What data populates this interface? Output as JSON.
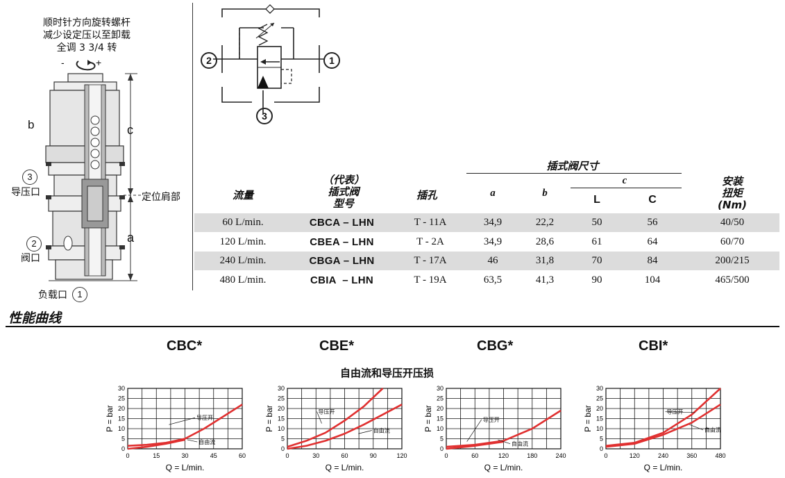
{
  "left_diagram": {
    "instruction": [
      "顺时针方向旋转螺杆",
      "减少设定压以至卸载",
      "全调 3 3/4 转"
    ],
    "minus": "-",
    "plus": "+",
    "label_b": "b",
    "label_c": "c",
    "label_a": "a",
    "port3_num": "3",
    "port3_text": "导压口",
    "port2_num": "2",
    "port2_text": "阀口",
    "port1_text": "负载口",
    "port1_num": "1",
    "shoulder": "定位肩部"
  },
  "schematic": {
    "port1": "1",
    "port2": "2",
    "port3": "3"
  },
  "table": {
    "head_flow": "流量",
    "head_model": [
      "（代表）",
      "插式阀",
      "型号"
    ],
    "head_cavity": "插孔",
    "head_dims": "插式阀尺寸",
    "head_a": "a",
    "head_b": "b",
    "head_c": "c",
    "head_L": "L",
    "head_C": "C",
    "head_torque": [
      "安装",
      "扭矩",
      "(Nm)"
    ],
    "rows": [
      {
        "flow": "60 L/min.",
        "model": "CBCA – LHN",
        "cavity": "T - 11A",
        "a": "34,9",
        "b": "22,2",
        "L": "50",
        "C": "56",
        "torque": "40/50"
      },
      {
        "flow": "120 L/min.",
        "model": "CBEA – LHN",
        "cavity": "T - 2A",
        "a": "34,9",
        "b": "28,6",
        "L": "61",
        "C": "64",
        "torque": "60/70"
      },
      {
        "flow": "240 L/min.",
        "model": "CBGA – LHN",
        "cavity": "T - 17A",
        "a": "46",
        "b": "31,8",
        "L": "70",
        "C": "84",
        "torque": "200/215"
      },
      {
        "flow": "480 L/min.",
        "model": "CBIA  – LHN",
        "cavity": "T - 19A",
        "a": "63,5",
        "b": "41,3",
        "L": "90",
        "C": "104",
        "torque": "465/500"
      }
    ]
  },
  "section_title": "性能曲线",
  "charts_subtitle": "自由流和导压开压损",
  "chart_data": [
    {
      "type": "line",
      "title": "CBC*",
      "xlabel": "Q = L/min.",
      "ylabel": "P = bar",
      "xticks": [
        "0",
        "15",
        "30",
        "45",
        "60"
      ],
      "yticks": [
        "0",
        "5",
        "10",
        "15",
        "20",
        "25",
        "30"
      ],
      "xlim": [
        0,
        60
      ],
      "ylim": [
        0,
        30
      ],
      "series": [
        {
          "name": "导压开",
          "x": [
            0,
            10,
            20,
            30,
            40,
            50,
            60
          ],
          "y": [
            1.5,
            2,
            3,
            5,
            10,
            16,
            22
          ]
        },
        {
          "name": "自由流",
          "x": [
            0,
            10,
            20,
            30
          ],
          "y": [
            0,
            1,
            2.5,
            4.5
          ]
        }
      ],
      "annotations": [
        "导压开",
        "自由流"
      ]
    },
    {
      "type": "line",
      "title": "CBE*",
      "xlabel": "Q = L/min.",
      "ylabel": "P = bar",
      "xticks": [
        "0",
        "30",
        "60",
        "90",
        "120"
      ],
      "yticks": [
        "0",
        "5",
        "10",
        "15",
        "20",
        "25",
        "30"
      ],
      "xlim": [
        0,
        120
      ],
      "ylim": [
        0,
        30
      ],
      "series": [
        {
          "name": "导压开",
          "x": [
            0,
            20,
            40,
            60,
            80,
            100
          ],
          "y": [
            1,
            4,
            8,
            14,
            21,
            30
          ]
        },
        {
          "name": "自由流",
          "x": [
            0,
            20,
            40,
            60,
            80,
            100,
            120
          ],
          "y": [
            0,
            1.5,
            4,
            7.5,
            12,
            17,
            22
          ]
        }
      ],
      "annotations": [
        "导压开",
        "自由流"
      ]
    },
    {
      "type": "line",
      "title": "CBG*",
      "xlabel": "Q = L/min.",
      "ylabel": "P = bar",
      "xticks": [
        "0",
        "60",
        "120",
        "180",
        "240"
      ],
      "yticks": [
        "0",
        "5",
        "10",
        "15",
        "20",
        "25",
        "30"
      ],
      "xlim": [
        0,
        240
      ],
      "ylim": [
        0,
        30
      ],
      "series": [
        {
          "name": "导压开",
          "x": [
            0,
            60,
            120,
            180,
            240
          ],
          "y": [
            1,
            2,
            4,
            10,
            19
          ]
        },
        {
          "name": "自由流",
          "x": [
            0,
            60,
            120
          ],
          "y": [
            0,
            1.5,
            3.5
          ]
        }
      ],
      "annotations": [
        "导压开",
        "自由流"
      ]
    },
    {
      "type": "line",
      "title": "CBI*",
      "xlabel": "Q = L/min.",
      "ylabel": "P = bar",
      "xticks": [
        "0",
        "120",
        "240",
        "360",
        "480"
      ],
      "yticks": [
        "0",
        "5",
        "10",
        "15",
        "20",
        "25",
        "30"
      ],
      "xlim": [
        0,
        480
      ],
      "ylim": [
        0,
        30
      ],
      "series": [
        {
          "name": "导压开",
          "x": [
            0,
            120,
            240,
            360,
            480
          ],
          "y": [
            1.5,
            3,
            8,
            17,
            30
          ]
        },
        {
          "name": "自由流",
          "x": [
            0,
            120,
            240,
            360,
            480
          ],
          "y": [
            1,
            2.5,
            7,
            13,
            22
          ]
        }
      ],
      "annotations": [
        "导压开",
        "自由流"
      ]
    }
  ]
}
